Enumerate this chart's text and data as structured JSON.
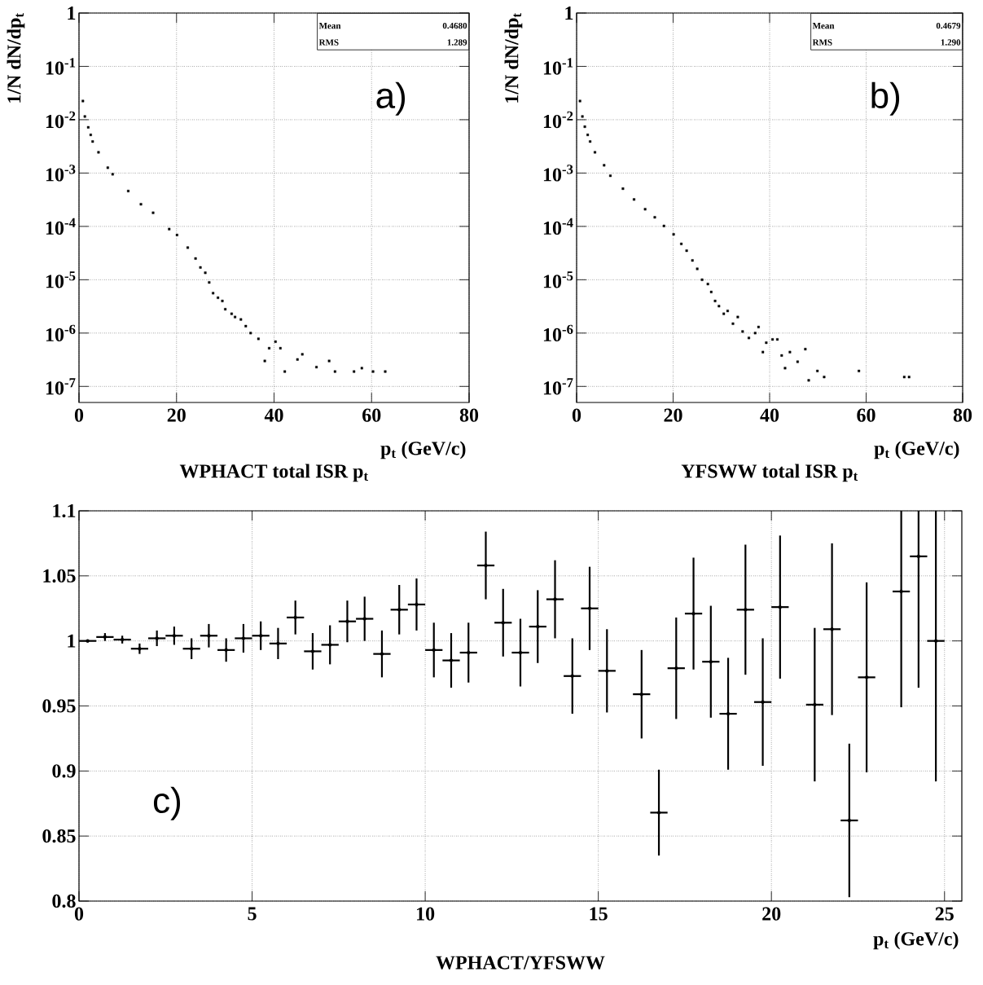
{
  "chart_data": [
    {
      "type": "scatter",
      "title": "WPHACT total ISR p$_{t}$",
      "xlabel": "p$_{t}$ (GeV/c)",
      "ylabel": "1/N dN/dp$_{t}$",
      "log": "y",
      "grid": true,
      "marker": "square",
      "annotations": [
        "Mean",
        "0.4680",
        "RMS",
        "1.289",
        "a)"
      ],
      "xlim": [
        0,
        80
      ],
      "xticks": [
        0,
        20,
        40,
        60,
        80
      ],
      "ylim": [
        5e-08,
        1
      ],
      "yticks": [
        1,
        {
          "value": 0.1,
          "label": "10$^{-1}$"
        },
        {
          "value": 0.01,
          "label": "10$^{-2}$"
        },
        {
          "value": 0.001,
          "label": "10$^{-3}$"
        },
        {
          "value": 0.0001,
          "label": "10$^{-4}$"
        },
        {
          "value": 1e-05,
          "label": "10$^{-5}$"
        },
        {
          "value": 1e-06,
          "label": "10$^{-6}$"
        },
        {
          "value": 1e-07,
          "label": "10$^{-7}$"
        }
      ],
      "series": [
        {
          "color": "#000000",
          "x": [
            0.8,
            1.2,
            1.9,
            2.4,
            2.8,
            4.0,
            5.9,
            6.9,
            10.1,
            12.7,
            15.2,
            18.5,
            20.1,
            22.3,
            23.9,
            24.9,
            25.9,
            26.7,
            27.5,
            28.5,
            29.4,
            30.0,
            31.3,
            32.0,
            33.2,
            34.2,
            35.2,
            36.8,
            38.1,
            39.0,
            40.3,
            41.3,
            42.2,
            44.8,
            45.8,
            48.7,
            51.3,
            52.5,
            56.4,
            58.0,
            60.3,
            62.8
          ],
          "values": [
            0.0224,
            0.0115,
            0.0072,
            0.0052,
            0.0039,
            0.00245,
            0.00126,
            0.00095,
            0.00046,
            0.00026,
            0.00018,
            8.9e-05,
            6.9e-05,
            4e-05,
            2.5e-05,
            1.7e-05,
            1.35e-05,
            8.9e-06,
            5.6e-06,
            4.6e-06,
            4e-06,
            2.8e-06,
            2.3e-06,
            2e-06,
            1.8e-06,
            1.35e-06,
            1e-06,
            7.8e-07,
            3e-07,
            5.2e-07,
            6.9e-07,
            5.2e-07,
            1.9e-07,
            3.2e-07,
            4e-07,
            2.3e-07,
            3e-07,
            1.9e-07,
            1.9e-07,
            2.2e-07,
            1.9e-07,
            1.9e-07
          ]
        }
      ]
    },
    {
      "type": "scatter",
      "title": "YFSWW total ISR p$_{t}$",
      "xlabel": "p$_{t}$ (GeV/c)",
      "ylabel": "1/N dN/dp$_{t}$",
      "log": "y",
      "grid": true,
      "marker": "square",
      "annotations": [
        "Mean",
        "0.4679",
        "RMS",
        "1.290",
        "b)"
      ],
      "xlim": [
        0,
        80
      ],
      "xticks": [
        0,
        20,
        40,
        60,
        80
      ],
      "ylim": [
        5e-08,
        1
      ],
      "yticks": [
        1,
        {
          "value": 0.1,
          "label": "10$^{-1}$"
        },
        {
          "value": 0.01,
          "label": "10$^{-2}$"
        },
        {
          "value": 0.001,
          "label": "10$^{-3}$"
        },
        {
          "value": 0.0001,
          "label": "10$^{-4}$"
        },
        {
          "value": 1e-05,
          "label": "10$^{-5}$"
        },
        {
          "value": 1e-06,
          "label": "10$^{-6}$"
        },
        {
          "value": 1e-07,
          "label": "10$^{-7}$"
        }
      ],
      "series": [
        {
          "color": "#000000",
          "x": [
            0.7,
            1.2,
            1.7,
            2.3,
            2.8,
            3.8,
            5.7,
            7.0,
            9.6,
            11.9,
            14.2,
            16.2,
            18.1,
            20.1,
            21.7,
            22.8,
            24.0,
            25.0,
            26.0,
            27.2,
            27.9,
            28.7,
            29.5,
            30.5,
            31.3,
            32.4,
            33.4,
            34.4,
            35.7,
            37.0,
            37.7,
            38.6,
            39.3,
            40.6,
            41.6,
            42.5,
            43.2,
            44.2,
            45.8,
            47.4,
            48.1,
            49.9,
            51.3,
            58.5,
            67.9,
            68.9
          ],
          "values": [
            0.0224,
            0.0115,
            0.0074,
            0.0052,
            0.0039,
            0.00245,
            0.0014,
            0.00089,
            0.00051,
            0.00032,
            0.00021,
            0.000148,
            0.000102,
            7.1e-05,
            4.7e-05,
            3.5e-05,
            2.3e-05,
            1.6e-05,
            1e-05,
            8.3e-06,
            5.9e-06,
            4e-06,
            3.2e-06,
            2.3e-06,
            2.6e-06,
            1.5e-06,
            2e-06,
            1.07e-06,
            8.1e-07,
            1e-06,
            1.3e-06,
            4.4e-07,
            6.6e-07,
            7.6e-07,
            7.6e-07,
            3.8e-07,
            2.2e-07,
            4.4e-07,
            2.9e-07,
            5e-07,
            1.3e-07,
            1.95e-07,
            1.5e-07,
            1.95e-07,
            1.5e-07,
            1.5e-07
          ]
        }
      ]
    },
    {
      "type": "scatter",
      "title": "WPHACT/YFSWW",
      "xlabel": "p$_{t}$ (GeV/c)",
      "grid": true,
      "marker": "none",
      "annotations": [
        "c)"
      ],
      "xlim": [
        0,
        25.5
      ],
      "xticks": [
        0,
        5,
        10,
        15,
        20,
        25
      ],
      "ylim": [
        0.8,
        1.1
      ],
      "yticks": [
        0.8,
        0.85,
        0.9,
        0.95,
        1,
        1.05,
        1.1
      ],
      "x": [
        0.25,
        0.75,
        1.25,
        1.75,
        2.25,
        2.75,
        3.25,
        3.75,
        4.25,
        4.75,
        5.25,
        5.75,
        6.25,
        6.75,
        7.25,
        7.75,
        8.25,
        8.75,
        9.25,
        9.75,
        10.25,
        10.75,
        11.25,
        11.75,
        12.25,
        12.75,
        13.25,
        13.75,
        14.25,
        14.75,
        15.25,
        15.75,
        16.25,
        16.75,
        17.25,
        17.75,
        18.25,
        18.75,
        19.25,
        19.75,
        20.25,
        20.75,
        21.25,
        21.75,
        22.25,
        22.75,
        23.25,
        23.75,
        24.25,
        24.75
      ],
      "values": [
        1.0,
        1.003,
        1.001,
        0.994,
        1.002,
        1.004,
        0.994,
        1.004,
        0.993,
        1.002,
        1.004,
        0.998,
        1.018,
        0.992,
        0.997,
        1.015,
        1.017,
        0.99,
        1.024,
        1.028,
        0.993,
        0.985,
        0.991,
        1.058,
        1.014,
        0.991,
        1.011,
        1.032,
        0.973,
        1.025,
        0.977,
        null,
        0.959,
        0.868,
        0.979,
        1.021,
        0.984,
        0.944,
        1.024,
        0.953,
        1.026,
        null,
        0.951,
        1.009,
        0.862,
        0.972,
        null,
        1.038,
        1.065,
        1.0
      ],
      "errors": [
        0.001,
        0.003,
        0.003,
        0.004,
        0.006,
        0.007,
        0.008,
        0.009,
        0.009,
        0.011,
        0.011,
        0.012,
        0.013,
        0.014,
        0.015,
        0.016,
        0.017,
        0.018,
        0.019,
        0.02,
        0.021,
        0.021,
        0.023,
        0.026,
        0.026,
        0.026,
        0.028,
        0.03,
        0.029,
        0.032,
        0.032,
        null,
        0.034,
        0.033,
        0.039,
        0.043,
        0.043,
        0.043,
        0.05,
        0.049,
        0.055,
        null,
        0.059,
        0.066,
        0.059,
        0.073,
        null,
        [
          0.949,
          1.1
        ],
        [
          0.964,
          1.1
        ],
        [
          0.892,
          1.1
        ]
      ],
      "xerrors": [
        0.25,
        0.25,
        0.25,
        0.25,
        0.25,
        0.25,
        0.25,
        0.25,
        0.25,
        0.25,
        0.25,
        0.25,
        0.25,
        0.25,
        0.25,
        0.25,
        0.25,
        0.25,
        0.25,
        0.25,
        0.25,
        0.25,
        0.25,
        0.25,
        0.25,
        0.25,
        0.25,
        0.25,
        0.25,
        0.25,
        0.25,
        null,
        0.25,
        0.25,
        0.25,
        0.25,
        0.25,
        0.25,
        0.25,
        0.25,
        0.25,
        null,
        0.25,
        0.25,
        0.25,
        0.25,
        null,
        0.25,
        0.25,
        0.25
      ]
    }
  ]
}
